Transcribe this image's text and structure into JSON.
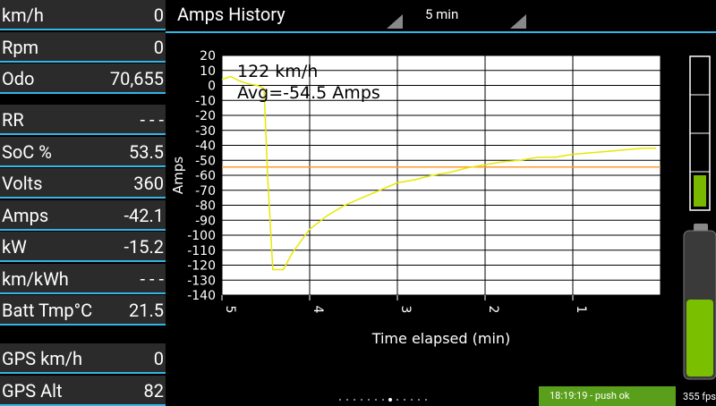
{
  "panel": {
    "rows": [
      {
        "label": "km/h",
        "value": "0"
      },
      {
        "label": "Rpm",
        "value": "0"
      },
      {
        "label": "Odo",
        "value": "70,655"
      },
      {
        "label": "RR",
        "value": "- - -"
      },
      {
        "label": "SoC %",
        "value": "53.5"
      },
      {
        "label": "Volts",
        "value": "360"
      },
      {
        "label": "Amps",
        "value": "-42.1"
      },
      {
        "label": "kW",
        "value": "-15.2"
      },
      {
        "label": "km/kWh",
        "value": "- - -"
      },
      {
        "label": "Batt Tmp°C",
        "value": "21.5"
      },
      {
        "label": "GPS km/h",
        "value": "0"
      },
      {
        "label": "GPS Alt",
        "value": "82"
      }
    ]
  },
  "header": {
    "title": "Amps History",
    "range": "5 min"
  },
  "chart_data": {
    "type": "line",
    "ylabel": "Amps",
    "xlabel": "Time elapsed (min)",
    "annotations": [
      "122 km/h",
      "Avg=-54.5 Amps"
    ],
    "xlim": [
      5,
      0
    ],
    "xticks": [
      5,
      4,
      3,
      2,
      1
    ],
    "ylim": [
      -140,
      20
    ],
    "yticks": [
      20,
      10,
      0,
      -10,
      -20,
      -30,
      -40,
      -50,
      -60,
      -70,
      -80,
      -90,
      -100,
      -110,
      -120,
      -130,
      -140
    ],
    "grid": true,
    "x": [
      5,
      4.9,
      4.8,
      4.7,
      4.6,
      4.52,
      4.48,
      4.42,
      4.3,
      4.2,
      4.1,
      4.0,
      3.8,
      3.6,
      3.4,
      3.2,
      3.0,
      2.8,
      2.6,
      2.4,
      2.2,
      2.0,
      1.8,
      1.6,
      1.4,
      1.2,
      1.0,
      0.8,
      0.6,
      0.4,
      0.2,
      0.05
    ],
    "series": [
      {
        "color": "#e8e800",
        "values": [
          4,
          6,
          3,
          1,
          0,
          -2,
          -60,
          -123,
          -123,
          -112,
          -104,
          -96,
          -87,
          -80,
          -75,
          -70,
          -65,
          -63,
          -60,
          -58,
          -55,
          -53,
          -51,
          -50,
          -48,
          -48,
          -46,
          -45,
          -44,
          -43,
          -42,
          -42
        ]
      }
    ],
    "reference_line": {
      "value": -54.5,
      "color": "#ff9a2e"
    }
  },
  "status": {
    "message": "18:19:19 - push ok",
    "fps": "355 fps"
  }
}
